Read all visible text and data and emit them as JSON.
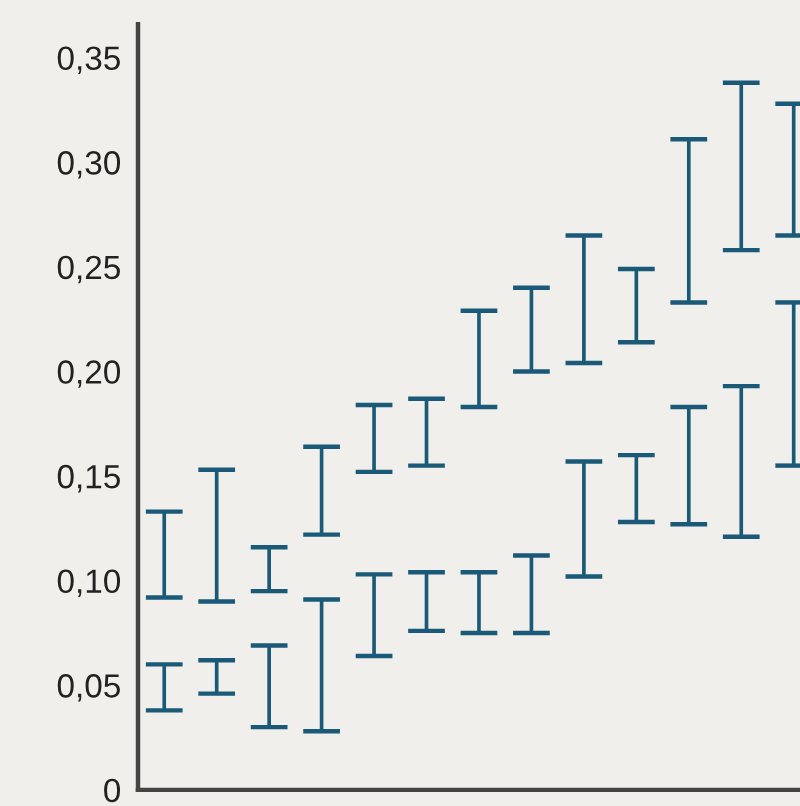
{
  "chart_data": {
    "type": "bar",
    "categories": [
      null,
      null,
      null,
      null,
      null,
      null,
      null,
      null,
      null,
      null,
      null,
      null,
      null
    ],
    "series": [
      {
        "color": "#1a5a78",
        "base": [
          0.092,
          0.09,
          0.095,
          0.122,
          0.152,
          0.155,
          0.183,
          0.2,
          0.204,
          0.214,
          0.233,
          0.258,
          0.265
        ],
        "values": [
          0.041,
          0.063,
          0.021,
          0.042,
          0.032,
          0.032,
          0.046,
          0.04,
          0.061,
          0.035,
          0.078,
          0.08,
          0.063
        ]
      },
      {
        "color": "#1a5a78",
        "base": [
          0.038,
          0.046,
          0.03,
          0.028,
          0.064,
          0.076,
          0.075,
          0.075,
          0.102,
          0.128,
          0.127,
          0.121,
          0.155
        ],
        "values": [
          0.022,
          0.016,
          0.039,
          0.063,
          0.039,
          0.028,
          0.029,
          0.037,
          0.055,
          0.032,
          0.056,
          0.072,
          0.078
        ]
      }
    ],
    "ylim": [
      0,
      0.366
    ],
    "yticks": [
      {
        "value": 0,
        "label": "0"
      },
      {
        "value": 0.05,
        "label": "0,05"
      },
      {
        "value": 0.1,
        "label": "0,10"
      },
      {
        "value": 0.15,
        "label": "0,15"
      },
      {
        "value": 0.2,
        "label": "0,20"
      },
      {
        "value": 0.25,
        "label": "0,25"
      },
      {
        "value": 0.3,
        "label": "0,30"
      },
      {
        "value": 0.35,
        "label": "0,35"
      }
    ],
    "grid": false
  }
}
